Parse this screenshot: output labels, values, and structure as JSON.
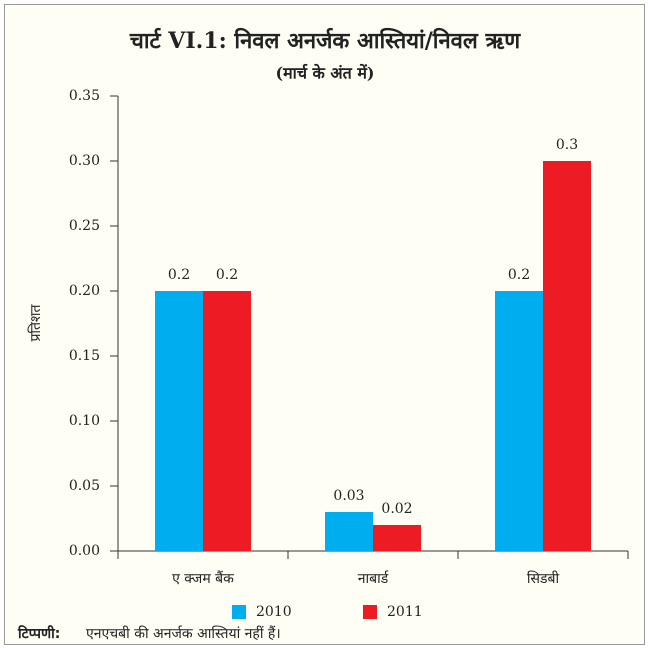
{
  "chart_data": {
    "type": "bar",
    "title": "चार्ट VI.1: निवल अनर्जक आस्तियां/निवल ऋण",
    "subtitle": "(मार्च के अंत में)",
    "y_label": "प्रतिशत",
    "categories": [
      "ए क्जम बैंक",
      "नाबार्ड",
      "सिडबी"
    ],
    "series": [
      {
        "name": "2010",
        "color": "#00aeef",
        "values": [
          0.2,
          0.03,
          0.2
        ]
      },
      {
        "name": "2011",
        "color": "#ed1c24",
        "values": [
          0.2,
          0.02,
          0.3
        ]
      }
    ],
    "ylim": [
      0,
      0.35
    ],
    "yticks": [
      {
        "value": 0,
        "label": "0.00"
      },
      0.05,
      {
        "value": 0.1,
        "label": "0.10"
      },
      0.15,
      {
        "value": 0.2,
        "label": "0.20"
      },
      0.25,
      {
        "value": 0.3,
        "label": "0.30"
      },
      0.35
    ],
    "note_label": "टिप्पणी:",
    "note": "एनएचबी की अनर्जक आस्तियां नहीं हैं।",
    "legend": "bottom"
  }
}
